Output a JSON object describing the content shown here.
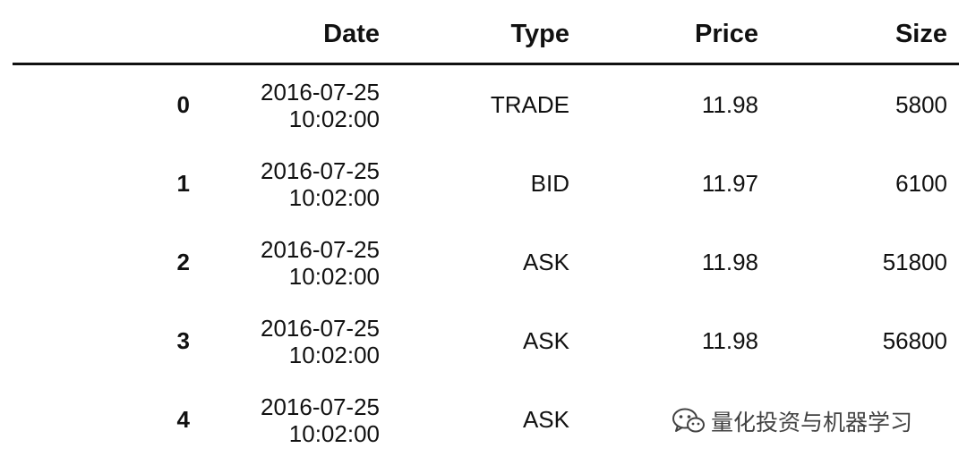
{
  "table": {
    "columns": {
      "date": "Date",
      "type": "Type",
      "price": "Price",
      "size": "Size"
    },
    "rows": [
      {
        "index": "0",
        "date_line1": "2016-07-25",
        "date_line2": "10:02:00",
        "type": "TRADE",
        "price": "11.98",
        "size": "5800"
      },
      {
        "index": "1",
        "date_line1": "2016-07-25",
        "date_line2": "10:02:00",
        "type": "BID",
        "price": "11.97",
        "size": "6100"
      },
      {
        "index": "2",
        "date_line1": "2016-07-25",
        "date_line2": "10:02:00",
        "type": "ASK",
        "price": "11.98",
        "size": "51800"
      },
      {
        "index": "3",
        "date_line1": "2016-07-25",
        "date_line2": "10:02:00",
        "type": "ASK",
        "price": "11.98",
        "size": "56800"
      },
      {
        "index": "4",
        "date_line1": "2016-07-25",
        "date_line2": "10:02:00",
        "type": "ASK",
        "price": "",
        "size": ""
      }
    ]
  },
  "watermark": {
    "icon": "wechat-icon",
    "text": "量化投资与机器学习"
  }
}
